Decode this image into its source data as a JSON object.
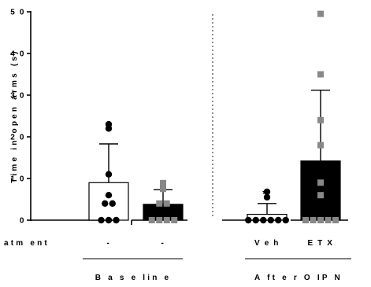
{
  "chart_data": {
    "type": "bar",
    "ylabel": "Time in open arms (s)",
    "ylim": [
      0,
      50
    ],
    "y_ticks": [
      0,
      10,
      20,
      30,
      40,
      50
    ],
    "y_tick_labels": [
      "0",
      "1 0",
      "2 0",
      "3 0",
      "4 0",
      "5 0"
    ],
    "row_label": "atm ent",
    "groups": [
      {
        "label": "Baseline",
        "display_label": "B a s e lin e",
        "bars": [
          {
            "treatment": "-",
            "mean": 9,
            "error": 9.3,
            "fill": "#ffffff",
            "marker": "circle",
            "marker_color": "#000000",
            "points": [
              0,
              0,
              0,
              4,
              4,
              6,
              11,
              22,
              23
            ]
          },
          {
            "treatment": "-",
            "mean": 3.8,
            "error": 3.5,
            "fill": "#000000",
            "marker": "square",
            "marker_color": "#888888",
            "points": [
              0,
              0,
              0,
              0,
              4,
              4,
              7.5,
              8,
              8.9
            ]
          }
        ]
      },
      {
        "label": "After OIPN",
        "display_label": "A ft e r O IP N",
        "bars": [
          {
            "treatment": "Veh",
            "display_treatment": "V e h",
            "mean": 1.4,
            "error": 2.6,
            "fill": "#ffffff",
            "marker": "circle",
            "marker_color": "#000000",
            "points": [
              0,
              0,
              0,
              0,
              0,
              0,
              5.5,
              6.8
            ],
            "annotation": "*"
          },
          {
            "treatment": "ETX",
            "display_treatment": "E T X",
            "mean": 14.2,
            "error": 17,
            "fill": "#000000",
            "marker": "square",
            "marker_color": "#888888",
            "points": [
              0,
              0,
              0,
              0,
              0,
              6,
              9,
              18,
              24,
              35,
              49.5
            ]
          }
        ]
      }
    ],
    "divider": "dotted vertical line between groups",
    "grid": false,
    "legend": "none"
  }
}
